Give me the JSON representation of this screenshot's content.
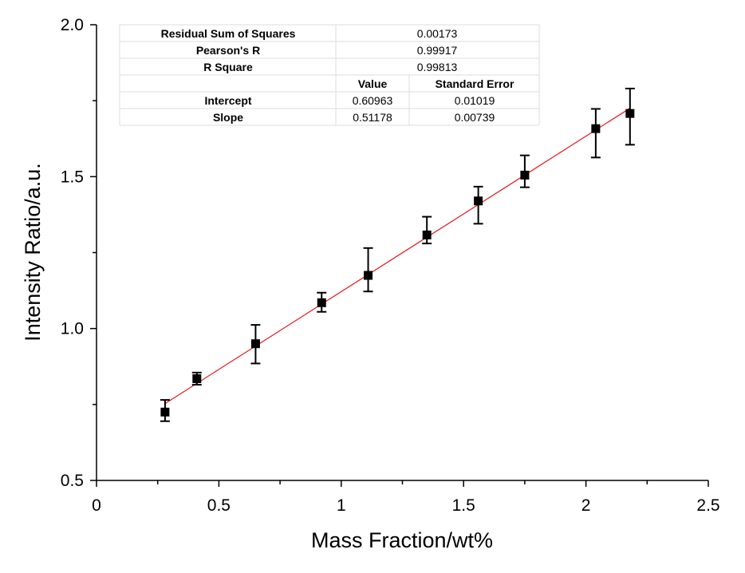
{
  "chart_data": {
    "type": "scatter",
    "xlabel": "Mass Fraction/wt%",
    "ylabel": "Intensity Ratio/a.u.",
    "xlim": [
      0,
      2.5
    ],
    "ylim": [
      0.5,
      2.0
    ],
    "x_ticks": [
      "0",
      "0.5",
      "1",
      "1.5",
      "2",
      "2.5"
    ],
    "y_ticks": [
      "0.5",
      "1.0",
      "1.5",
      "2.0"
    ],
    "grid": false,
    "series": [
      {
        "marker": "square",
        "color": "#000000",
        "points": [
          {
            "x": 0.28,
            "y": 0.725,
            "err_low": 0.695,
            "err_high": 0.765
          },
          {
            "x": 0.41,
            "y": 0.835,
            "err_low": 0.815,
            "err_high": 0.855
          },
          {
            "x": 0.65,
            "y": 0.95,
            "err_low": 0.885,
            "err_high": 1.012
          },
          {
            "x": 0.92,
            "y": 1.085,
            "err_low": 1.055,
            "err_high": 1.118
          },
          {
            "x": 1.11,
            "y": 1.175,
            "err_low": 1.122,
            "err_high": 1.265
          },
          {
            "x": 1.35,
            "y": 1.308,
            "err_low": 1.28,
            "err_high": 1.368
          },
          {
            "x": 1.56,
            "y": 1.42,
            "err_low": 1.345,
            "err_high": 1.467
          },
          {
            "x": 1.75,
            "y": 1.505,
            "err_low": 1.465,
            "err_high": 1.57
          },
          {
            "x": 2.04,
            "y": 1.658,
            "err_low": 1.563,
            "err_high": 1.723
          },
          {
            "x": 2.18,
            "y": 1.708,
            "err_low": 1.605,
            "err_high": 1.79
          }
        ]
      }
    ],
    "fit_line": {
      "color": "#e8161b",
      "intercept": 0.60963,
      "slope": 0.51178,
      "x_range": [
        0.28,
        2.18
      ]
    }
  },
  "stats_table": {
    "rss_label": "Residual Sum of Squares",
    "rss_value": "0.00173",
    "pearson_label": "Pearson's R",
    "pearson_value": "0.99917",
    "rsq_label": "R Square",
    "rsq_value": "0.99813",
    "value_header": "Value",
    "stderr_header": "Standard Error",
    "intercept_label": "Intercept",
    "intercept_value": "0.60963",
    "intercept_err": "0.01019",
    "slope_label": "Slope",
    "slope_value": "0.51178",
    "slope_err": "0.00739"
  }
}
